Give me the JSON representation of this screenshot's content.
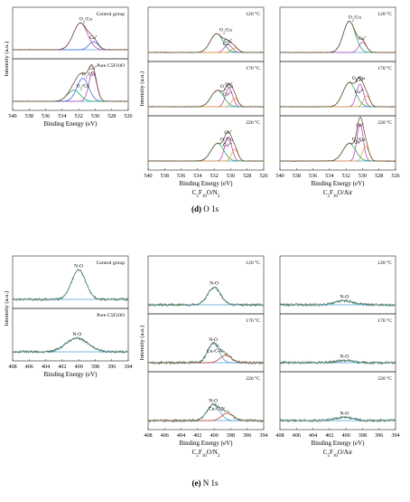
{
  "figure": {
    "captions": [
      {
        "letter": "(d)",
        "text": "O 1s"
      },
      {
        "letter": "(e)",
        "text": "N 1s"
      }
    ],
    "colors": {
      "data": "#4b6a43",
      "envelope": "#d23a3a",
      "background": "#4aa0d8",
      "green": "#2aa36b",
      "magenta": "#c047b5",
      "blue": "#4169e1",
      "orange": "#e8a33a",
      "frame": "#222222"
    }
  },
  "chart_data": [
    {
      "type": "line",
      "section": "O 1s",
      "column": "left",
      "xlabel": "Binding Energy (eV)",
      "ylabel": "Intensity (a.u.)",
      "xlim": [
        540,
        526
      ],
      "xticks": [
        526,
        528,
        530,
        532,
        534,
        536,
        538,
        540
      ],
      "panels": [
        {
          "label": "Control group",
          "peaks": [
            {
              "name": "Cu+",
              "center": 530.2,
              "amp": 0.22,
              "fwhm": 1.3,
              "color": "#4169e1"
            },
            {
              "name": "O2/Cu",
              "center": 531.8,
              "amp": 0.72,
              "fwhm": 2.0,
              "color": "#c047b5"
            }
          ]
        },
        {
          "label": "Pure C5F10O",
          "peaks": [
            {
              "name": "Cu+",
              "center": 530.3,
              "amp": 0.8,
              "fwhm": 1.1,
              "color": "#c047b5"
            },
            {
              "name": "O2/Cu",
              "center": 531.5,
              "amp": 0.62,
              "fwhm": 1.7,
              "color": "#4169e1"
            },
            {
              "name": "O2/Cu",
              "center": 532.6,
              "amp": 0.3,
              "fwhm": 1.8,
              "color": "#2aa36b"
            }
          ]
        }
      ]
    },
    {
      "type": "line",
      "section": "O 1s",
      "column": "middle",
      "xlabel": "Binding Energy (eV)",
      "series_label": "C5F10O/N2",
      "xlim": [
        540,
        526
      ],
      "xticks": [
        526,
        528,
        530,
        532,
        534,
        536,
        538,
        540
      ],
      "panels": [
        {
          "label": "120 °C",
          "peaks": [
            {
              "name": "Cu+",
              "center": 530.3,
              "amp": 0.2,
              "fwhm": 1.1,
              "color": "#c047b5"
            },
            {
              "name": "Cu2+",
              "center": 529.5,
              "amp": 0.12,
              "fwhm": 1.0,
              "color": "#e8a33a"
            },
            {
              "name": "O2/Cu",
              "center": 531.7,
              "amp": 0.48,
              "fwhm": 1.8,
              "color": "#2aa36b"
            }
          ]
        },
        {
          "label": "170 °C",
          "peaks": [
            {
              "name": "Cu+",
              "center": 530.2,
              "amp": 0.48,
              "fwhm": 1.0,
              "color": "#c047b5"
            },
            {
              "name": "Cu2+",
              "center": 529.5,
              "amp": 0.22,
              "fwhm": 0.9,
              "color": "#e8a33a"
            },
            {
              "name": "O2/Cu",
              "center": 531.6,
              "amp": 0.42,
              "fwhm": 1.8,
              "color": "#2aa36b"
            }
          ]
        },
        {
          "label": "220 °C",
          "peaks": [
            {
              "name": "Cu+",
              "center": 530.3,
              "amp": 0.62,
              "fwhm": 1.0,
              "color": "#c047b5"
            },
            {
              "name": "Cu2+",
              "center": 529.5,
              "amp": 0.3,
              "fwhm": 0.9,
              "color": "#e8a33a"
            },
            {
              "name": "O2/Cu",
              "center": 531.6,
              "amp": 0.45,
              "fwhm": 1.8,
              "color": "#2aa36b"
            }
          ]
        }
      ]
    },
    {
      "type": "line",
      "section": "O 1s",
      "column": "right",
      "xlabel": "Binding Energy (eV)",
      "series_label": "C5F10O/Air",
      "xlim": [
        540,
        526
      ],
      "xticks": [
        526,
        528,
        530,
        532,
        534,
        536,
        538,
        540
      ],
      "panels": [
        {
          "label": "120 °C",
          "peaks": [
            {
              "name": "Cu+",
              "center": 530.0,
              "amp": 0.26,
              "fwhm": 1.1,
              "color": "#c047b5"
            },
            {
              "name": "O2/Cu",
              "center": 531.6,
              "amp": 0.8,
              "fwhm": 1.7,
              "color": "#2aa36b"
            }
          ]
        },
        {
          "label": "170 °C",
          "peaks": [
            {
              "name": "Cu+",
              "center": 530.3,
              "amp": 0.58,
              "fwhm": 1.0,
              "color": "#c047b5"
            },
            {
              "name": "Cu2+",
              "center": 529.5,
              "amp": 0.28,
              "fwhm": 0.9,
              "color": "#e8a33a"
            },
            {
              "name": "O2/Cu",
              "center": 531.6,
              "amp": 0.62,
              "fwhm": 1.8,
              "color": "#2aa36b"
            }
          ]
        },
        {
          "label": "220 °C",
          "peaks": [
            {
              "name": "Cu+",
              "center": 530.3,
              "amp": 0.95,
              "fwhm": 0.9,
              "color": "#c047b5"
            },
            {
              "name": "Cu2+",
              "center": 529.6,
              "amp": 0.38,
              "fwhm": 0.9,
              "color": "#e8a33a"
            },
            {
              "name": "O2/Cu",
              "center": 531.6,
              "amp": 0.45,
              "fwhm": 1.8,
              "color": "#2aa36b"
            }
          ]
        }
      ]
    },
    {
      "type": "line",
      "section": "N 1s",
      "column": "left",
      "xlabel": "Binding Energy (eV)",
      "ylabel": "Intensity (a.u.)",
      "xlim": [
        408,
        394
      ],
      "xticks": [
        394,
        396,
        398,
        400,
        402,
        404,
        406,
        408
      ],
      "panels": [
        {
          "label": "Control group",
          "peaks": [
            {
              "name": "N-O",
              "center": 400.0,
              "amp": 0.78,
              "fwhm": 2.0,
              "color": "#4aa0d8"
            }
          ]
        },
        {
          "label": "Pure C5F10O",
          "peaks": [
            {
              "name": "N-O",
              "center": 400.2,
              "amp": 0.36,
              "fwhm": 3.2,
              "color": "#4aa0d8"
            }
          ]
        }
      ]
    },
    {
      "type": "line",
      "section": "N 1s",
      "column": "middle",
      "xlabel": "Binding Energy (eV)",
      "series_label": "C5F10O/N2",
      "xlim": [
        408,
        394
      ],
      "xticks": [
        394,
        396,
        398,
        400,
        402,
        404,
        406,
        408
      ],
      "panels": [
        {
          "label": "120 °C",
          "peaks": [
            {
              "name": "N-O",
              "center": 400.0,
              "amp": 0.42,
              "fwhm": 1.8,
              "color": "#4aa0d8"
            }
          ]
        },
        {
          "label": "170 °C",
          "peaks": [
            {
              "name": "N-O",
              "center": 400.1,
              "amp": 0.46,
              "fwhm": 1.6,
              "color": "#4aa0d8"
            },
            {
              "name": "Cu-C-N",
              "center": 398.6,
              "amp": 0.18,
              "fwhm": 1.6,
              "color": "#d23a3a"
            }
          ]
        },
        {
          "label": "220 °C",
          "peaks": [
            {
              "name": "N-O",
              "center": 400.1,
              "amp": 0.38,
              "fwhm": 1.8,
              "color": "#4aa0d8"
            },
            {
              "name": "Cu-C-N",
              "center": 398.4,
              "amp": 0.18,
              "fwhm": 1.6,
              "color": "#d23a3a"
            }
          ]
        }
      ]
    },
    {
      "type": "line",
      "section": "N 1s",
      "column": "right",
      "xlabel": "Binding Energy (eV)",
      "series_label": "C5F10O/Air",
      "xlim": [
        408,
        394
      ],
      "xticks": [
        394,
        396,
        398,
        400,
        402,
        404,
        406,
        408
      ],
      "panels": [
        {
          "label": "120 °C",
          "peaks": [
            {
              "name": "N-O",
              "center": 400.2,
              "amp": 0.1,
              "fwhm": 2.5,
              "color": "#4aa0d8"
            }
          ]
        },
        {
          "label": "170 °C",
          "peaks": [
            {
              "name": "N-O",
              "center": 400.2,
              "amp": 0.05,
              "fwhm": 2.5,
              "color": "#4aa0d8"
            }
          ]
        },
        {
          "label": "220 °C",
          "peaks": [
            {
              "name": "N-O",
              "center": 400.2,
              "amp": 0.08,
              "fwhm": 2.5,
              "color": "#4aa0d8"
            }
          ]
        }
      ]
    }
  ]
}
